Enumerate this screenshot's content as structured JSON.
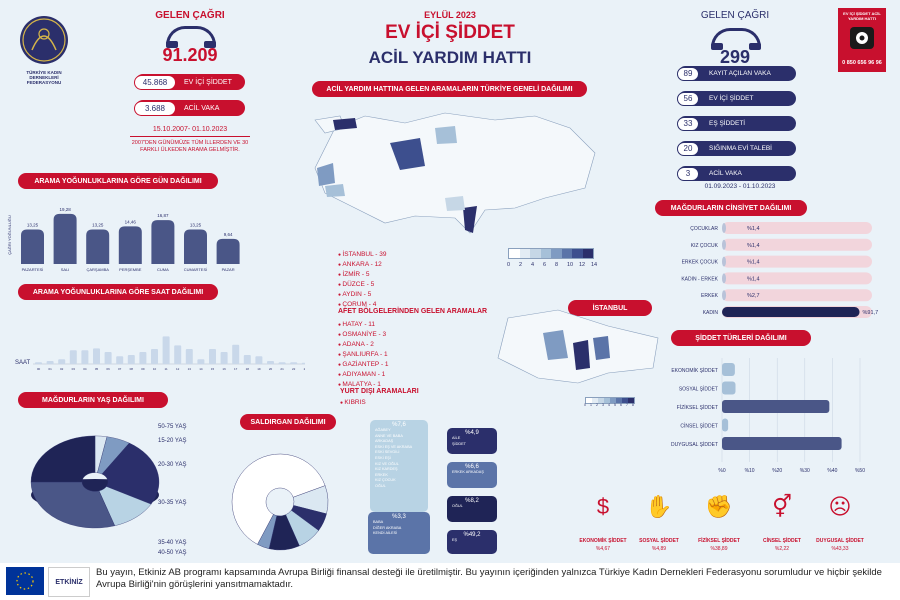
{
  "header": {
    "month": "EYLÜL 2023",
    "title_line1": "EV İÇİ ŞİDDET",
    "title_line2": "ACİL YARDIM HATTI",
    "logo_text": "TÜRKİYE KADIN DERNEKLERİ FEDERASYONU",
    "logo_year": "1976",
    "poster_top": "EV İÇİ ŞİDDET ACİL YARDIM HATTI",
    "poster_phone": "0 850 656 96 96"
  },
  "left_calls": {
    "title": "GELEN ÇAĞRI",
    "total": "91.209",
    "stats": [
      {
        "num": "45.868",
        "label": "EV İÇİ ŞİDDET"
      },
      {
        "num": "3.688",
        "label": "ACİL VAKA"
      }
    ],
    "period": "15.10.2007- 01.10.2023",
    "note": "2007'DEN GÜNÜMÜZE TÜM İLLERDEN VE 30 FARKLI ÜLKEDEN ARAMA GELMİŞTİR."
  },
  "right_calls": {
    "title": "GELEN ÇAĞRI",
    "total": "299",
    "stats": [
      {
        "num": "89",
        "label": "KAYIT AÇILAN VAKA"
      },
      {
        "num": "56",
        "label": "EV İÇİ ŞİDDET"
      },
      {
        "num": "33",
        "label": "EŞ ŞİDDETİ"
      },
      {
        "num": "20",
        "label": "SIĞINMA EVİ TALEBİ"
      },
      {
        "num": "3",
        "label": "ACİL VAKA"
      }
    ],
    "period": "01.09.2023 - 01.10.2023"
  },
  "map": {
    "title": "ACİL YARDIM HATTINA GELEN ARAMALARIN TÜRKİYE GENELİ DAĞILIMI",
    "legend_ticks": [
      "0",
      "2",
      "4",
      "6",
      "8",
      "10",
      "12",
      "14"
    ],
    "legend_colors": [
      "#ffffff",
      "#e3ecf4",
      "#c6d7e6",
      "#a6c0d8",
      "#7f9bc2",
      "#5b74a8",
      "#3d4f8e",
      "#2b2f6b"
    ],
    "istanbul_label": "İSTANBUL",
    "istanbul_ticks": [
      "0",
      "1",
      "2",
      "3",
      "4",
      "5",
      "6",
      "7",
      "8"
    ]
  },
  "cities": [
    "İSTANBUL - 39",
    "ANKARA - 12",
    "İZMİR - 5",
    "DÜZCE - 5",
    "AYDIN - 5",
    "ÇORUM - 4"
  ],
  "disaster": {
    "title": "AFET BÖLGELERİNDEN GELEN ARAMALAR",
    "items": [
      "HATAY - 11",
      "OSMANİYE - 3",
      "ADANA - 2",
      "ŞANLIURFA - 1",
      "GAZİANTEP - 1",
      "ADIYAMAN - 1",
      "MALATYA - 1"
    ]
  },
  "abroad": {
    "title": "YURT DIŞI ARAMALARI",
    "items": [
      "KIBRIS"
    ]
  },
  "day_chart_title": "ARAMA YOĞUNLUKLARINA GÖRE GÜN DAĞILIMI",
  "hour_chart_title": "ARAMA YOĞUNLUKLARINA GÖRE SAAT DAĞILIMI",
  "age_title": "MAĞDURLARIN YAŞ DAĞILIMI",
  "attacker_title": "SALDIRGAN DAĞILIMI",
  "gender_title": "MAĞDURLARIN CİNSİYET DAĞILIMI",
  "violence_title": "ŞİDDET TÜRLERİ DAĞILIMI",
  "attacker_boxes": [
    {
      "pct": "%7,6",
      "items": [
        "AĞABEY",
        "ANNE VE BABA",
        "ARKADAŞ",
        "ESKİ EŞ VE AKRABA",
        "ESKİ SEVGİLİ",
        "ESKİ EŞİ",
        "KIZ VE OĞUL",
        "KIZ KARDEŞ",
        "ERKEK",
        "KIZ ÇOCUK",
        "OĞUL"
      ]
    },
    {
      "pct": "%4,9",
      "items": [
        "AİLE",
        "ŞİDDET"
      ]
    },
    {
      "pct": "%6,6",
      "items": [
        "ERKEK ARKADAŞ"
      ]
    },
    {
      "pct": "%8,2",
      "items": [
        "OĞUL"
      ]
    },
    {
      "pct": "%3,3",
      "items": [
        "BABA",
        "DİĞER AKRABA",
        "KENDİ AİLESİ"
      ]
    },
    {
      "pct": "%49,2",
      "items": [
        "EŞ"
      ]
    }
  ],
  "violence_icons": [
    {
      "label": "EKONOMİK ŞİDDET",
      "pct": "%4,67"
    },
    {
      "label": "SOSYAL ŞİDDET",
      "pct": "%4,89"
    },
    {
      "label": "FİZİKSEL ŞİDDET",
      "pct": "%38,89"
    },
    {
      "label": "CİNSEL ŞİDDET",
      "pct": "%2,22"
    },
    {
      "label": "DUYGUSAL ŞİDDET",
      "pct": "%43,33"
    }
  ],
  "footer": {
    "etkiniz": "ETKİNİZ",
    "text": "Bu yayın, Etkiniz AB programı kapsamında Avrupa Birliği finansal desteği ile üretilmiştir. Bu yayının içeriğinden yalnızca Türkiye Kadın Dernekleri Federasyonu sorumludur ve hiçbir şekilde Avrupa Birliği'nin görüşlerini yansıtmamaktadır."
  },
  "colors": {
    "red": "#c8102e",
    "navy": "#2b2f6b",
    "bar": "#4a5687",
    "pink": "#f2d5dc"
  },
  "chart_data": [
    {
      "type": "bar",
      "title": "ARAMA YOĞUNLUKLARINA GÖRE GÜN DAĞILIMI",
      "ylabel": "ÇAĞRI YOĞUNLUĞU",
      "categories": [
        "PAZARTESİ",
        "SALI",
        "ÇARŞAMBA",
        "PERŞEMBE",
        "CUMA",
        "CUMARTESİ",
        "PAZAR"
      ],
      "values": [
        13.25,
        19.28,
        13.25,
        14.46,
        16.87,
        13.25,
        9.64
      ],
      "value_labels": [
        "13,25",
        "19,28",
        "13,25",
        "14,46",
        "16,87",
        "13,25",
        "9,64"
      ],
      "ylim": [
        0,
        20
      ]
    },
    {
      "type": "bar",
      "title": "ARAMA YOĞUNLUKLARINA GÖRE SAAT DAĞILIMI",
      "xlabel": "SAAT",
      "categories": [
        "00",
        "01",
        "02",
        "03",
        "04",
        "05",
        "06",
        "07",
        "08",
        "09",
        "10",
        "11",
        "12",
        "13",
        "14",
        "15",
        "16",
        "17",
        "18",
        "19",
        "20",
        "21",
        "22",
        "23"
      ],
      "values": [
        0.3,
        0.5,
        0.8,
        2.3,
        2.3,
        2.6,
        2.0,
        1.3,
        1.5,
        2.0,
        2.5,
        4.6,
        3.1,
        2.5,
        0.8,
        2.5,
        2.0,
        3.2,
        1.5,
        1.3,
        0.5,
        0.3,
        0.3,
        0.2
      ],
      "ylim": [
        0,
        6
      ]
    },
    {
      "type": "pie",
      "title": "MAĞDURLARIN YAŞ DAĞILIMI",
      "labels": [
        "50-75 YAŞ",
        "15-20 YAŞ",
        "20-30 YAŞ",
        "30-35 YAŞ",
        "35-40 YAŞ",
        "40-50 YAŞ"
      ],
      "values": [
        3,
        6,
        24,
        12,
        30,
        25
      ],
      "colors": [
        "#dbe8f2",
        "#7f9bc2",
        "#2b2f6b",
        "#b8d3e4",
        "#4a5687",
        "#1f2456"
      ]
    },
    {
      "type": "pie",
      "title": "SALDIRGAN DAĞILIMI",
      "labels": [
        "%7,6",
        "%4,9",
        "%6,6",
        "%8,2",
        "%3,3",
        "%49,2"
      ],
      "values": [
        7.6,
        4.9,
        6.6,
        8.2,
        3.3,
        49.2
      ],
      "colors": [
        "#dbe8f2",
        "#2b2f6b",
        "#b8d3e4",
        "#1f2456",
        "#7f9bc2",
        "#ffffff"
      ]
    },
    {
      "type": "bar",
      "title": "MAĞDURLARIN CİNSİYET DAĞILIMI",
      "categories": [
        "ÇOCUKLAR",
        "KIZ ÇOCUK",
        "ERKEK ÇOCUK",
        "KADIN - ERKEK",
        "ERKEK",
        "KADIN"
      ],
      "values": [
        1.4,
        1.4,
        1.4,
        1.4,
        2.7,
        91.7
      ],
      "value_labels": [
        "%1,4",
        "%1,4",
        "%1,4",
        "%1,4",
        "%2,7",
        "%91,7"
      ],
      "xlim": [
        0,
        100
      ]
    },
    {
      "type": "bar",
      "title": "ŞİDDET TÜRLERİ DAĞILIMI",
      "categories": [
        "EKONOMİK ŞİDDET",
        "SOSYAL ŞİDDET",
        "FİZİKSEL ŞİDDET",
        "CİNSEL ŞİDDET",
        "DUYGUSAL ŞİDDET"
      ],
      "values": [
        4.67,
        4.89,
        38.89,
        2.22,
        43.33
      ],
      "tick_labels": [
        "%0",
        "%10",
        "%20",
        "%30",
        "%40",
        "%50"
      ],
      "xlim": [
        0,
        50
      ]
    }
  ]
}
